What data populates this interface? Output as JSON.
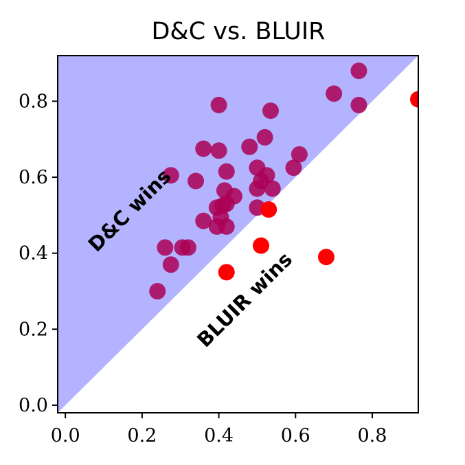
{
  "chart_data": {
    "type": "scatter",
    "title": "D&C vs. BLUIR",
    "xlabel": "",
    "ylabel": "",
    "xlim": [
      -0.02,
      0.92
    ],
    "ylim": [
      -0.02,
      0.92
    ],
    "x_ticks": [
      "0.0",
      "0.2",
      "0.4",
      "0.6",
      "0.8"
    ],
    "y_ticks": [
      "0.0",
      "0.2",
      "0.4",
      "0.6",
      "0.8"
    ],
    "grid": false,
    "regions": [
      {
        "label": "D&C wins",
        "side": "above diagonal y = x",
        "color": "#b3b3ff"
      },
      {
        "label": "BLUIR wins",
        "side": "below diagonal y = x",
        "color": "#ffffff"
      }
    ],
    "points": [
      {
        "x": 0.24,
        "y": 0.3,
        "winner": "D&C"
      },
      {
        "x": 0.26,
        "y": 0.415,
        "winner": "D&C"
      },
      {
        "x": 0.275,
        "y": 0.37,
        "winner": "D&C"
      },
      {
        "x": 0.275,
        "y": 0.605,
        "winner": "D&C"
      },
      {
        "x": 0.305,
        "y": 0.415,
        "winner": "D&C"
      },
      {
        "x": 0.32,
        "y": 0.415,
        "winner": "D&C"
      },
      {
        "x": 0.34,
        "y": 0.59,
        "winner": "D&C"
      },
      {
        "x": 0.36,
        "y": 0.485,
        "winner": "D&C"
      },
      {
        "x": 0.36,
        "y": 0.675,
        "winner": "D&C"
      },
      {
        "x": 0.395,
        "y": 0.52,
        "winner": "D&C"
      },
      {
        "x": 0.395,
        "y": 0.47,
        "winner": "D&C"
      },
      {
        "x": 0.4,
        "y": 0.79,
        "winner": "D&C"
      },
      {
        "x": 0.4,
        "y": 0.67,
        "winner": "D&C"
      },
      {
        "x": 0.405,
        "y": 0.495,
        "winner": "D&C"
      },
      {
        "x": 0.41,
        "y": 0.525,
        "winner": "D&C"
      },
      {
        "x": 0.415,
        "y": 0.565,
        "winner": "D&C"
      },
      {
        "x": 0.42,
        "y": 0.47,
        "winner": "D&C"
      },
      {
        "x": 0.42,
        "y": 0.615,
        "winner": "D&C"
      },
      {
        "x": 0.42,
        "y": 0.53,
        "winner": "D&C"
      },
      {
        "x": 0.44,
        "y": 0.55,
        "winner": "D&C"
      },
      {
        "x": 0.48,
        "y": 0.68,
        "winner": "D&C"
      },
      {
        "x": 0.5,
        "y": 0.625,
        "winner": "D&C"
      },
      {
        "x": 0.5,
        "y": 0.57,
        "winner": "D&C"
      },
      {
        "x": 0.5,
        "y": 0.52,
        "winner": "D&C"
      },
      {
        "x": 0.51,
        "y": 0.59,
        "winner": "D&C"
      },
      {
        "x": 0.52,
        "y": 0.705,
        "winner": "D&C"
      },
      {
        "x": 0.525,
        "y": 0.605,
        "winner": "D&C"
      },
      {
        "x": 0.535,
        "y": 0.775,
        "winner": "D&C"
      },
      {
        "x": 0.54,
        "y": 0.57,
        "winner": "D&C"
      },
      {
        "x": 0.595,
        "y": 0.625,
        "winner": "D&C"
      },
      {
        "x": 0.61,
        "y": 0.66,
        "winner": "D&C"
      },
      {
        "x": 0.7,
        "y": 0.82,
        "winner": "D&C"
      },
      {
        "x": 0.765,
        "y": 0.88,
        "winner": "D&C"
      },
      {
        "x": 0.765,
        "y": 0.79,
        "winner": "D&C"
      },
      {
        "x": 0.42,
        "y": 0.35,
        "winner": "BLUIR"
      },
      {
        "x": 0.51,
        "y": 0.42,
        "winner": "BLUIR"
      },
      {
        "x": 0.53,
        "y": 0.515,
        "winner": "BLUIR"
      },
      {
        "x": 0.68,
        "y": 0.39,
        "winner": "BLUIR"
      },
      {
        "x": 0.92,
        "y": 0.805,
        "winner": "BLUIR"
      }
    ],
    "colors": {
      "dc_point": "#aa0055",
      "bluir_point": "#ff0000",
      "dc_region": "#b3b3ff"
    }
  }
}
